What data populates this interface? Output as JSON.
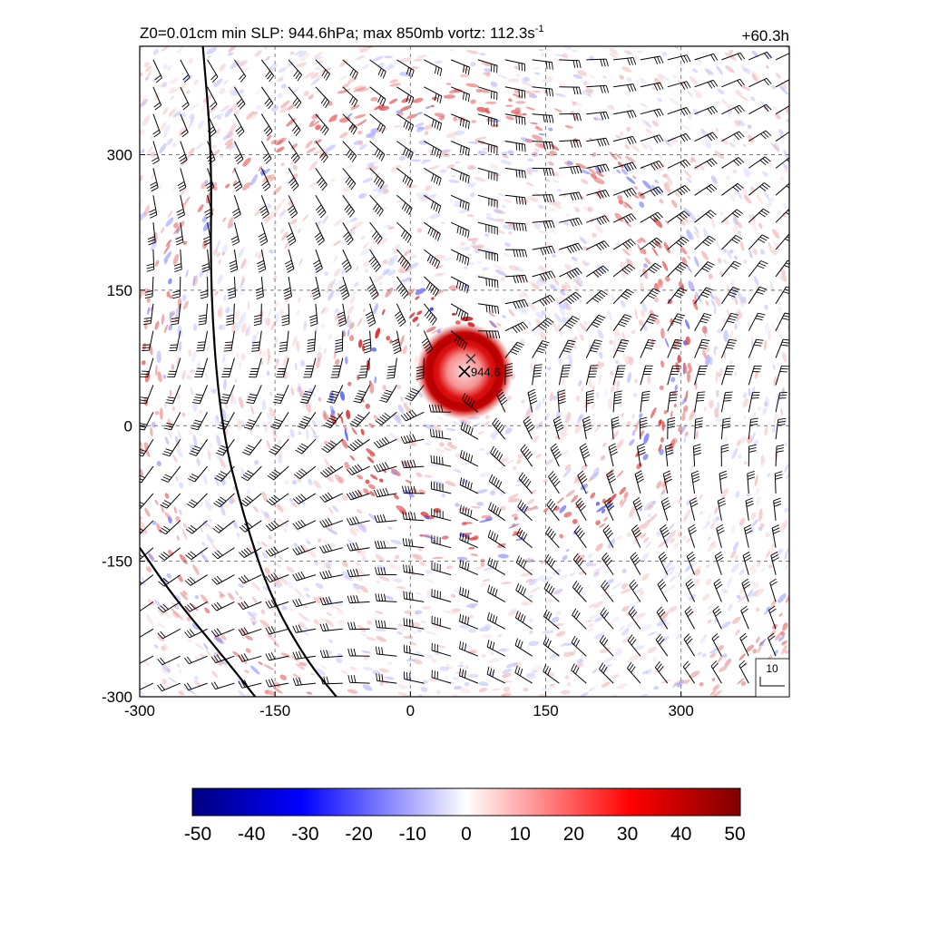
{
  "header": {
    "title_main": "Z0=0.01cm  min SLP: 944.6hPa; max 850mb vortz: 112.3s",
    "title_exp": "-1",
    "time_label": "+60.3h"
  },
  "center_marker": {
    "label": "944.6",
    "x": 60,
    "y": 60
  },
  "scale_box": {
    "label": "10"
  },
  "chart_data": [
    {
      "type": "heatmap",
      "title": "Z0=0.01cm  min SLP: 944.6hPa; max 850mb vortz: 112.3s-1",
      "xlim": [
        -300,
        420
      ],
      "ylim": [
        -300,
        420
      ],
      "x_ticks": [
        -300,
        -150,
        0,
        150,
        300
      ],
      "y_ticks": [
        -300,
        -150,
        0,
        150,
        300
      ],
      "x_tick_labels": [
        "-300",
        "-150",
        "0",
        "150",
        "300"
      ],
      "y_tick_labels": [
        "-300",
        "-150",
        "0",
        "150",
        "300"
      ],
      "grid": "dashed",
      "field": "850mb vorticity",
      "min_slp_hpa": 944.6,
      "max_vorticity": 112.3,
      "storm_center": [
        60,
        60
      ],
      "eyewall_radius": 40,
      "overlay": "wind barbs",
      "contours": [
        {
          "points": [
            [
              -230,
              420
            ],
            [
              -220,
              300
            ],
            [
              -222,
              150
            ],
            [
              -210,
              0
            ],
            [
              -185,
              -100
            ],
            [
              -155,
              -190
            ],
            [
              -115,
              -260
            ],
            [
              -82,
              -300
            ]
          ]
        },
        {
          "points": [
            [
              -300,
              -135
            ],
            [
              -262,
              -190
            ],
            [
              -212,
              -250
            ],
            [
              -172,
              -300
            ]
          ]
        }
      ]
    },
    {
      "type": "heatmap",
      "name": "colorbar",
      "range": [
        -50,
        50
      ],
      "ticks": [
        -50,
        -40,
        -30,
        -20,
        -10,
        0,
        10,
        20,
        30,
        40,
        50
      ],
      "tick_labels": [
        "-50",
        "-40",
        "-30",
        "-20",
        "-10",
        "0",
        "10",
        "20",
        "30",
        "40",
        "50"
      ],
      "colors": [
        "#00007f",
        "#0000ff",
        "#ffffff",
        "#ff0000",
        "#7f0000"
      ]
    }
  ]
}
